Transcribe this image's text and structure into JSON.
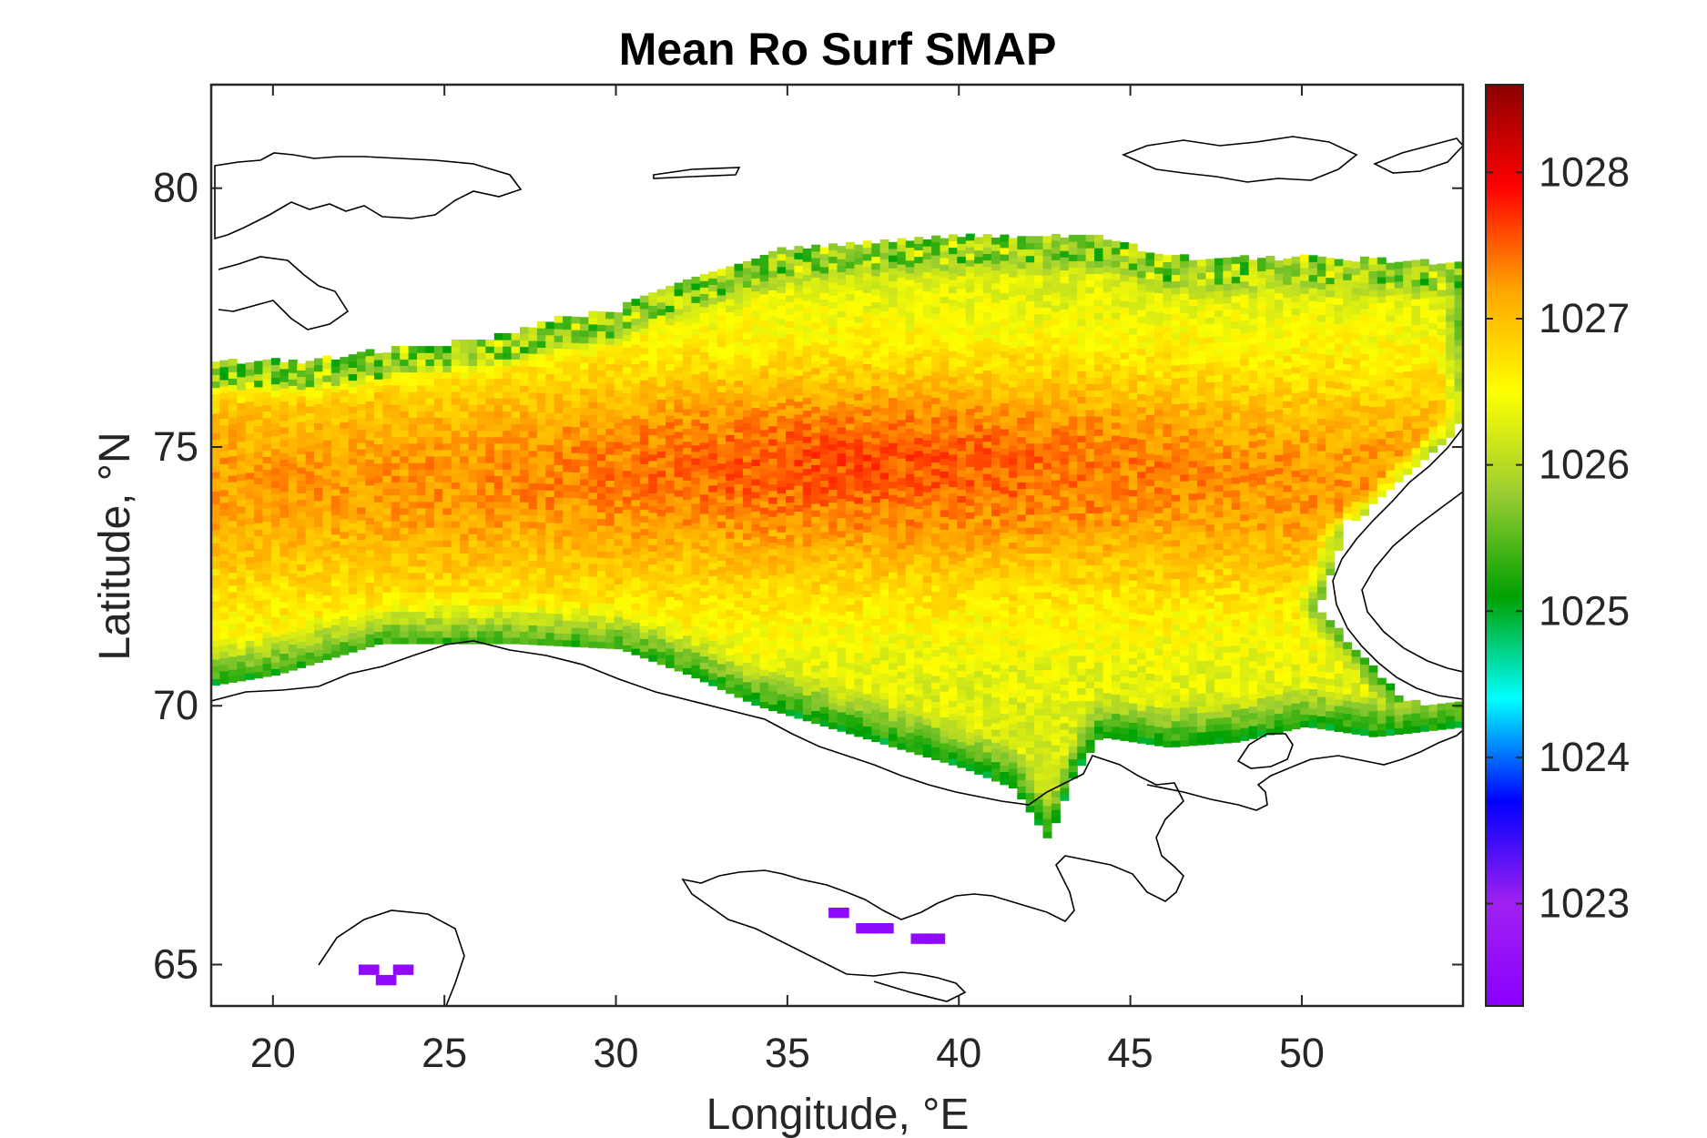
{
  "figure": {
    "title": "Mean Ro Surf SMAP",
    "xlabel": "Longitude, °E",
    "ylabel": "Latitude, °N"
  },
  "chart_data": {
    "type": "heatmap",
    "title": "Mean Ro Surf SMAP",
    "xlabel": "Longitude, °E",
    "ylabel": "Latitude, °N",
    "xlim": [
      18.2,
      54.7
    ],
    "ylim": [
      64.2,
      82.0
    ],
    "x_ticks": [
      20,
      25,
      30,
      35,
      40,
      45,
      50
    ],
    "x_tick_labels": [
      "20",
      "25",
      "30",
      "35",
      "40",
      "45",
      "50"
    ],
    "y_ticks": [
      65,
      70,
      75,
      80
    ],
    "y_tick_labels": [
      "65",
      "70",
      "75",
      "80"
    ],
    "colorbar": {
      "colormap": "jet-like (purple-blue-cyan-green-yellow-red-darkred)",
      "range": [
        1022.3,
        1028.6
      ],
      "ticks": [
        1023,
        1024,
        1025,
        1026,
        1027,
        1028
      ],
      "tick_labels": [
        "1023",
        "1024",
        "1025",
        "1026",
        "1027",
        "1028"
      ],
      "color_stops": [
        "#8b00ff",
        "#a020f0",
        "#0000ff",
        "#00ffff",
        "#00a000",
        "#9acd32",
        "#ffff00",
        "#ffa500",
        "#ff0000",
        "#8b0000"
      ]
    },
    "grid": false,
    "field_description": "Gridded mean surface density over the Barents Sea; highest values (~1027.5-1028) in a band near 74-76°N, 30-42°E; lower values (~1025-1026) along coasts and northern ice edge; isolated low values (~1022.5) in White Sea and Gulf of Bothnia area",
    "core_value": 1027.6,
    "band_value": 1027.2,
    "coastal_value": 1026.2,
    "north_edge_value": 1025.8,
    "anomaly_value": 1022.5
  }
}
